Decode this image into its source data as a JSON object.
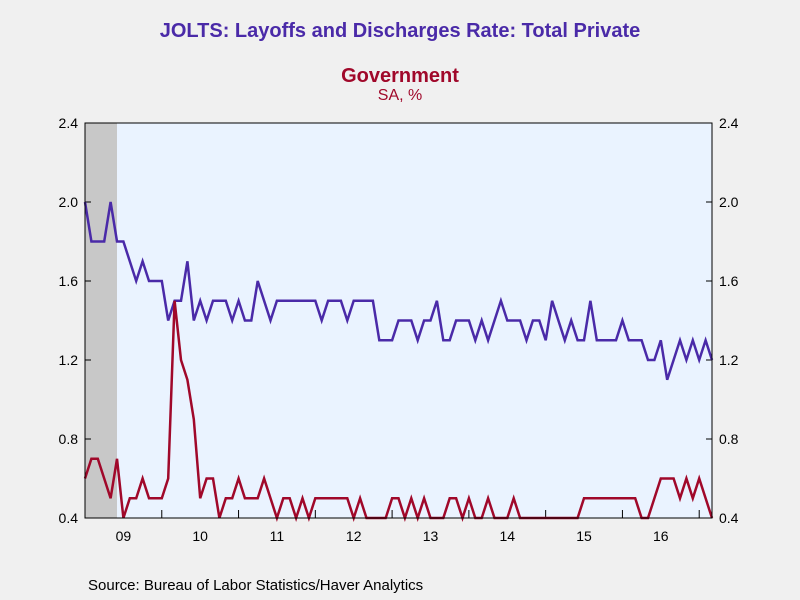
{
  "colors": {
    "private": "#4a2aa8",
    "government": "#a0082a",
    "plot_bg": "#eaf3ff",
    "recession": "#c8c8c8"
  },
  "source": "Source:  Bureau of Labor Statistics/Haver Analytics",
  "chart_data": {
    "type": "line",
    "title": "JOLTS: Layoffs and Discharges Rate: Total Private",
    "title_line2": "Government",
    "subtitle": "SA, %",
    "ylim": [
      0.4,
      2.4
    ],
    "yticks": [
      "0.4",
      "0.8",
      "1.2",
      "1.6",
      "2.0",
      "2.4"
    ],
    "ytick_values": [
      0.4,
      0.8,
      1.2,
      1.6,
      2.0,
      2.4
    ],
    "x_start": "2009-01",
    "x_end": "2017-03",
    "xticks": [
      "09",
      "10",
      "11",
      "12",
      "13",
      "14",
      "15",
      "16"
    ],
    "recession_band": [
      "2009-01",
      "2009-06"
    ],
    "grid": false,
    "series": [
      {
        "name": "Total Private",
        "color": "#4a2aa8",
        "values": [
          2.0,
          1.8,
          1.8,
          1.8,
          2.0,
          1.8,
          1.8,
          1.7,
          1.6,
          1.7,
          1.6,
          1.6,
          1.6,
          1.4,
          1.5,
          1.5,
          1.7,
          1.4,
          1.5,
          1.4,
          1.5,
          1.5,
          1.5,
          1.4,
          1.5,
          1.4,
          1.4,
          1.6,
          1.5,
          1.4,
          1.5,
          1.5,
          1.5,
          1.5,
          1.5,
          1.5,
          1.5,
          1.4,
          1.5,
          1.5,
          1.5,
          1.4,
          1.5,
          1.5,
          1.5,
          1.5,
          1.3,
          1.3,
          1.3,
          1.4,
          1.4,
          1.4,
          1.3,
          1.4,
          1.4,
          1.5,
          1.3,
          1.3,
          1.4,
          1.4,
          1.4,
          1.3,
          1.4,
          1.3,
          1.4,
          1.5,
          1.4,
          1.4,
          1.4,
          1.3,
          1.4,
          1.4,
          1.3,
          1.5,
          1.4,
          1.3,
          1.4,
          1.3,
          1.3,
          1.5,
          1.3,
          1.3,
          1.3,
          1.3,
          1.4,
          1.3,
          1.3,
          1.3,
          1.2,
          1.2,
          1.3,
          1.1,
          1.2,
          1.3,
          1.2,
          1.3,
          1.2,
          1.3,
          1.2
        ]
      },
      {
        "name": "Government",
        "color": "#a0082a",
        "values": [
          0.6,
          0.7,
          0.7,
          0.6,
          0.5,
          0.7,
          0.4,
          0.5,
          0.5,
          0.6,
          0.5,
          0.5,
          0.5,
          0.6,
          1.5,
          1.2,
          1.1,
          0.9,
          0.5,
          0.6,
          0.6,
          0.4,
          0.5,
          0.5,
          0.6,
          0.5,
          0.5,
          0.5,
          0.6,
          0.5,
          0.4,
          0.5,
          0.5,
          0.4,
          0.5,
          0.4,
          0.5,
          0.5,
          0.5,
          0.5,
          0.5,
          0.5,
          0.4,
          0.5,
          0.4,
          0.4,
          0.4,
          0.4,
          0.5,
          0.5,
          0.4,
          0.5,
          0.4,
          0.5,
          0.4,
          0.4,
          0.4,
          0.5,
          0.5,
          0.4,
          0.5,
          0.4,
          0.4,
          0.5,
          0.4,
          0.4,
          0.4,
          0.5,
          0.4,
          0.4,
          0.4,
          0.4,
          0.4,
          0.4,
          0.4,
          0.4,
          0.4,
          0.4,
          0.5,
          0.5,
          0.5,
          0.5,
          0.5,
          0.5,
          0.5,
          0.5,
          0.5,
          0.4,
          0.4,
          0.5,
          0.6,
          0.6,
          0.6,
          0.5,
          0.6,
          0.5,
          0.6,
          0.5,
          0.4
        ]
      }
    ]
  }
}
